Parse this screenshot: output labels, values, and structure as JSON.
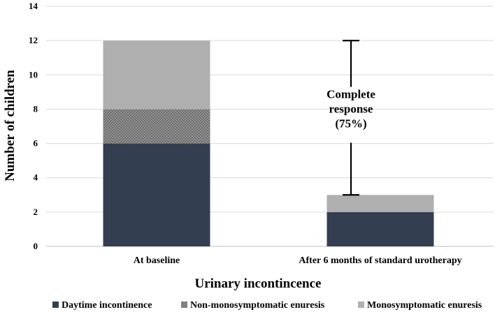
{
  "chart_data": {
    "type": "bar",
    "stacked": true,
    "categories": [
      "At baseline",
      "After 6 months of standard urotherapy"
    ],
    "series": [
      {
        "name": "Daytime incontinence",
        "values": [
          6,
          2
        ],
        "color": "#333f50",
        "pattern": "solid"
      },
      {
        "name": "Non-monosymptomatic enuresis",
        "values": [
          2,
          0
        ],
        "color": "#7f7f7f",
        "pattern": "dotted"
      },
      {
        "name": "Monosymptomatic enuresis",
        "values": [
          4,
          1
        ],
        "color": "#afafaf",
        "pattern": "solid"
      }
    ],
    "xlabel": "Urinary incontincence",
    "ylabel": "Number of children",
    "ylim": [
      0,
      14
    ],
    "yticks": [
      0,
      2,
      4,
      6,
      8,
      10,
      12,
      14
    ],
    "grid": true,
    "legend_position": "bottom",
    "annotation": {
      "lines": [
        "Complete",
        "response",
        "(75%)"
      ],
      "from_value": 12,
      "to_value": 3
    }
  }
}
